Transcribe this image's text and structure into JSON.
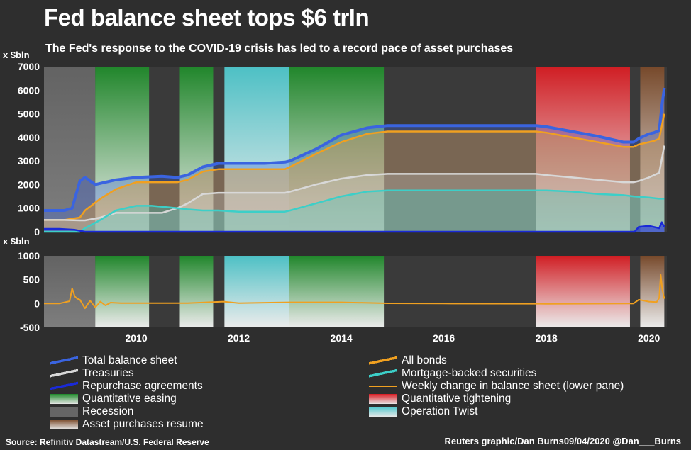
{
  "title": "Fed balance sheet tops $6 trln",
  "subtitle": "The Fed's response to the COVID-19 crisis has led to a record pace of asset purchases",
  "source": "Source: Refinitiv Datastream/U.S. Federal Reserve",
  "credit": "Reuters graphic/Dan Burns09/04/2020 @Dan___Burns",
  "colors": {
    "total": "#3a64e0",
    "bonds": "#f0a020",
    "treasuries": "#d8d8d8",
    "mbs": "#3ccfc8",
    "repo": "#1a2ad8",
    "weekly": "#f0a020",
    "qe": "#1f8a2a",
    "qt": "#d81c22",
    "recession": "#6a6a6a",
    "resume": "#7a4a2a",
    "twist": "#4ec7cc"
  },
  "chart_data": [
    {
      "type": "area",
      "ylabel": "x $bln",
      "ylim": [
        0,
        7000
      ],
      "yticks": [
        "7000",
        "6000",
        "5000",
        "4000",
        "3000",
        "2000",
        "1000",
        "0"
      ],
      "xlim": [
        2008.2,
        2020.35
      ],
      "series": [
        {
          "name": "Total balance sheet",
          "key": "total",
          "x": [
            2008.2,
            2008.6,
            2008.75,
            2008.9,
            2009.0,
            2009.2,
            2009.4,
            2009.6,
            2010.0,
            2010.5,
            2010.8,
            2011.0,
            2011.3,
            2011.6,
            2012.0,
            2012.5,
            2012.9,
            2013.0,
            2013.5,
            2014.0,
            2014.5,
            2014.9,
            2015.5,
            2016.0,
            2017.0,
            2017.8,
            2018.0,
            2018.5,
            2019.0,
            2019.5,
            2019.7,
            2019.8,
            2020.0,
            2020.1,
            2020.2,
            2020.25,
            2020.3
          ],
          "values": [
            900,
            900,
            1000,
            2150,
            2300,
            2000,
            2100,
            2200,
            2300,
            2350,
            2300,
            2400,
            2750,
            2900,
            2900,
            2900,
            2950,
            3000,
            3500,
            4100,
            4400,
            4500,
            4500,
            4500,
            4500,
            4500,
            4450,
            4250,
            4050,
            3800,
            3800,
            3950,
            4150,
            4200,
            4300,
            5300,
            6100
          ]
        },
        {
          "name": "All bonds",
          "key": "bonds",
          "x": [
            2008.2,
            2008.6,
            2008.9,
            2009.0,
            2009.3,
            2009.6,
            2010.0,
            2010.5,
            2010.8,
            2011.0,
            2011.3,
            2011.6,
            2012.0,
            2012.5,
            2012.9,
            2013.0,
            2013.5,
            2014.0,
            2014.5,
            2014.9,
            2015.5,
            2016.0,
            2017.0,
            2017.8,
            2018.0,
            2018.5,
            2019.0,
            2019.5,
            2019.7,
            2019.8,
            2020.0,
            2020.1,
            2020.2,
            2020.3
          ],
          "values": [
            500,
            500,
            600,
            900,
            1400,
            1800,
            2100,
            2100,
            2100,
            2200,
            2550,
            2650,
            2650,
            2650,
            2650,
            2750,
            3300,
            3800,
            4150,
            4250,
            4250,
            4250,
            4250,
            4250,
            4200,
            4000,
            3800,
            3600,
            3600,
            3700,
            3800,
            3850,
            3950,
            5000
          ]
        },
        {
          "name": "Treasuries",
          "key": "treasuries",
          "x": [
            2008.2,
            2008.6,
            2008.9,
            2009.0,
            2009.3,
            2009.6,
            2010.0,
            2010.5,
            2010.8,
            2011.0,
            2011.3,
            2011.6,
            2012.0,
            2012.5,
            2012.9,
            2013.0,
            2013.5,
            2014.0,
            2014.5,
            2014.9,
            2015.5,
            2016.0,
            2017.0,
            2017.8,
            2018.0,
            2018.5,
            2019.0,
            2019.5,
            2019.7,
            2019.8,
            2020.0,
            2020.1,
            2020.2,
            2020.3
          ],
          "values": [
            500,
            500,
            480,
            480,
            600,
            800,
            800,
            800,
            1000,
            1200,
            1600,
            1650,
            1650,
            1650,
            1650,
            1700,
            2000,
            2250,
            2400,
            2450,
            2450,
            2450,
            2450,
            2450,
            2400,
            2300,
            2200,
            2100,
            2100,
            2150,
            2300,
            2400,
            2500,
            3650
          ]
        },
        {
          "name": "Mortgage-backed securities",
          "key": "mbs",
          "x": [
            2008.2,
            2008.9,
            2009.0,
            2009.3,
            2009.6,
            2010.0,
            2010.3,
            2010.8,
            2011.0,
            2011.3,
            2011.6,
            2012.0,
            2012.5,
            2012.9,
            2013.0,
            2013.5,
            2014.0,
            2014.5,
            2014.9,
            2015.5,
            2016.0,
            2017.0,
            2017.8,
            2018.0,
            2018.5,
            2019.0,
            2019.5,
            2019.7,
            2020.0,
            2020.2,
            2020.3
          ],
          "values": [
            0,
            0,
            150,
            500,
            900,
            1100,
            1100,
            1000,
            950,
            900,
            900,
            850,
            850,
            850,
            900,
            1200,
            1500,
            1700,
            1750,
            1750,
            1750,
            1750,
            1750,
            1750,
            1700,
            1600,
            1550,
            1500,
            1450,
            1400,
            1400
          ]
        },
        {
          "name": "Repurchase agreements",
          "key": "repo",
          "x": [
            2008.2,
            2008.5,
            2008.8,
            2009.0,
            2019.6,
            2019.72,
            2019.8,
            2020.0,
            2020.1,
            2020.2,
            2020.25,
            2020.3
          ],
          "values": [
            120,
            120,
            80,
            0,
            0,
            0,
            200,
            250,
            200,
            150,
            400,
            200
          ]
        }
      ]
    },
    {
      "type": "line",
      "ylabel": "x $bln",
      "ylim": [
        -500,
        1000
      ],
      "yticks": [
        "1000",
        "500",
        "0",
        "-500"
      ],
      "xlabels": [
        "2010",
        "2012",
        "2014",
        "2016",
        "2018",
        "2020"
      ],
      "xlabel_values": [
        2010,
        2012,
        2014,
        2016,
        2018,
        2020
      ],
      "series": [
        {
          "name": "Weekly change in balance sheet (lower pane)",
          "key": "weekly",
          "x": [
            2008.2,
            2008.5,
            2008.7,
            2008.75,
            2008.8,
            2008.85,
            2008.9,
            2009.0,
            2009.1,
            2009.2,
            2009.3,
            2009.4,
            2009.5,
            2009.7,
            2010.0,
            2011.0,
            2011.7,
            2012.0,
            2013.0,
            2014.0,
            2014.9,
            2016.0,
            2018.0,
            2019.7,
            2019.8,
            2020.0,
            2020.15,
            2020.2,
            2020.23,
            2020.26,
            2020.3
          ],
          "values": [
            0,
            0,
            50,
            320,
            150,
            100,
            80,
            -100,
            60,
            -80,
            40,
            -40,
            20,
            10,
            10,
            10,
            40,
            10,
            25,
            25,
            5,
            0,
            -5,
            0,
            80,
            40,
            30,
            120,
            600,
            300,
            100
          ]
        }
      ]
    }
  ],
  "shaded_periods": [
    {
      "key": "recession",
      "start": 2008.2,
      "end": 2009.2
    },
    {
      "key": "qe",
      "start": 2009.2,
      "end": 2010.25
    },
    {
      "key": "qe",
      "start": 2010.85,
      "end": 2011.5
    },
    {
      "key": "twist",
      "start": 2011.72,
      "end": 2012.98
    },
    {
      "key": "qe",
      "start": 2012.98,
      "end": 2014.83
    },
    {
      "key": "qt",
      "start": 2017.8,
      "end": 2019.63
    },
    {
      "key": "resume",
      "start": 2019.83,
      "end": 2020.3
    }
  ],
  "legend": [
    {
      "label": "Total balance sheet",
      "key": "total",
      "kind": "line-area"
    },
    {
      "label": "All bonds",
      "key": "bonds",
      "kind": "line-area"
    },
    {
      "label": "Treasuries",
      "key": "treasuries",
      "kind": "line-area"
    },
    {
      "label": "Mortgage-backed securities",
      "key": "mbs",
      "kind": "line-area"
    },
    {
      "label": "Repurchase agreements",
      "key": "repo",
      "kind": "line-area"
    },
    {
      "label": "Weekly change in balance sheet (lower pane)",
      "key": "weekly",
      "kind": "line"
    },
    {
      "label": "Quantitative easing",
      "key": "qe",
      "kind": "band"
    },
    {
      "label": "Quantitative tightening",
      "key": "qt",
      "kind": "band"
    },
    {
      "label": "Recession",
      "key": "recession",
      "kind": "band"
    },
    {
      "label": "Operation Twist",
      "key": "twist",
      "kind": "band"
    },
    {
      "label": "Asset purchases resume",
      "key": "resume",
      "kind": "band"
    }
  ]
}
